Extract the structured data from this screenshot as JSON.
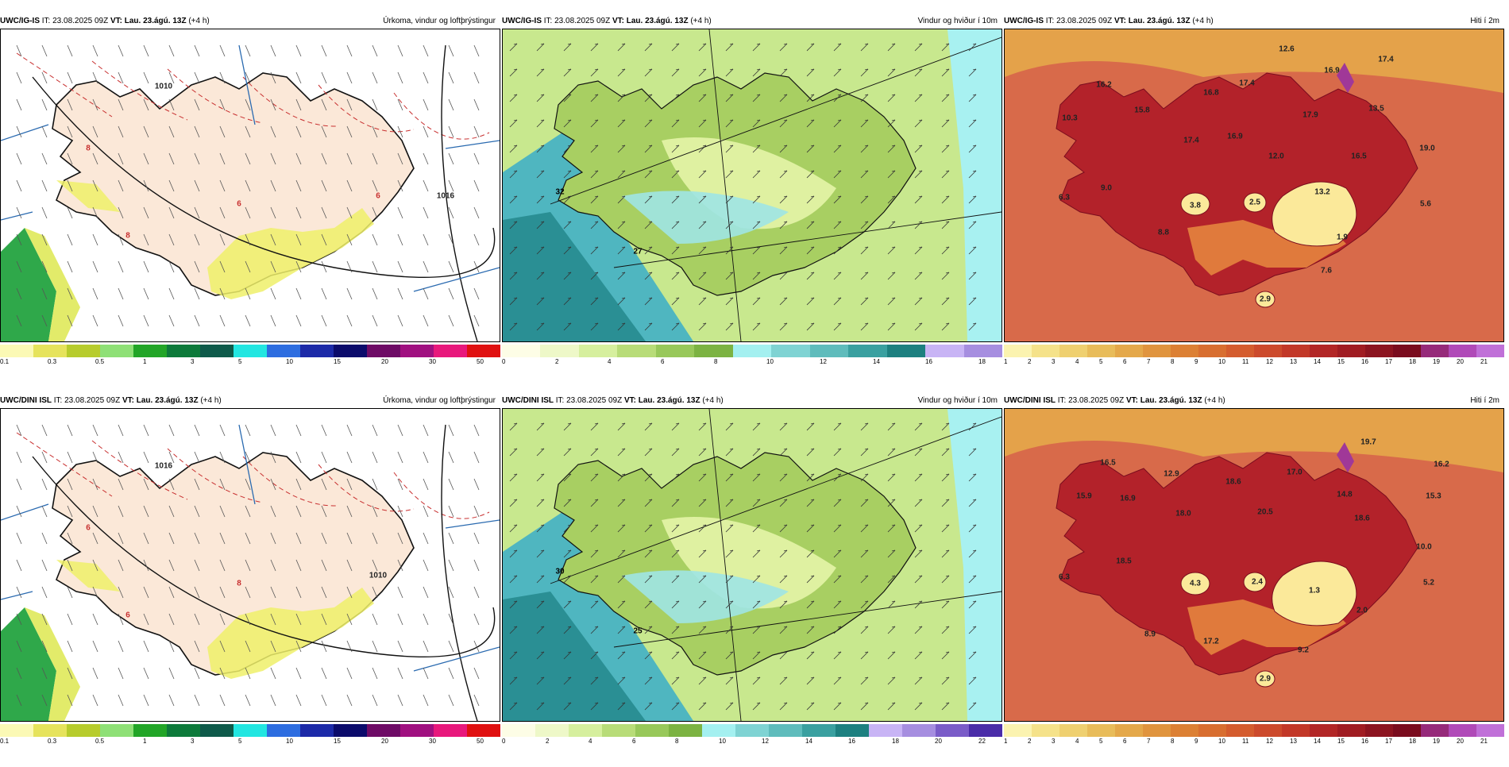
{
  "rows": [
    {
      "panels": [
        {
          "kind": "precip",
          "model": "UWC/IG-IS",
          "it": "IT: 23.08.2025 09Z",
          "vt": "VT: Lau. 23.ágú. 13Z",
          "lead": "(+4 h)",
          "title": "Úrkoma, vindur og loftþrýstingur",
          "colorbar": {
            "colors": [
              "#fbf9b5",
              "#e6e35c",
              "#b7cc2c",
              "#8ee076",
              "#22a527",
              "#0d7a3a",
              "#0e5a4a",
              "#22e6e1",
              "#2d6de0",
              "#1c2aa8",
              "#0b0b6b",
              "#6e0b66",
              "#a01080",
              "#e8187c",
              "#e01010"
            ],
            "labels": [
              "0.1",
              "0.3",
              "0.5",
              "1",
              "3",
              "5",
              "10",
              "15",
              "20",
              "30",
              "50"
            ]
          },
          "values": [
            {
              "text": "8",
              "c": "#c83030"
            },
            {
              "text": "6",
              "c": "#c83030"
            },
            {
              "text": "8",
              "c": "#c83030"
            },
            {
              "text": "6",
              "c": "#c83030"
            },
            {
              "text": "1010",
              "c": "#222"
            },
            {
              "text": "1016",
              "c": "#222"
            }
          ]
        },
        {
          "kind": "wind",
          "model": "UWC/IG-IS",
          "it": "IT: 23.08.2025 09Z",
          "vt": "VT: Lau. 23.ágú. 13Z",
          "lead": "(+4 h)",
          "title": "Vindur og hviður í 10m",
          "colorbar": {
            "colors": [
              "#fdfde6",
              "#eef8c8",
              "#d6ef9e",
              "#b8dc78",
              "#98c85a",
              "#7cb342",
              "#a4f0f0",
              "#7fd3d3",
              "#5fbcbc",
              "#3aa0a0",
              "#1d8080",
              "#c8b4f5",
              "#a68ee0"
            ],
            "labels": [
              "0",
              "2",
              "4",
              "6",
              "8",
              "10",
              "12",
              "14",
              "16",
              "18"
            ]
          },
          "values": [
            {
              "text": "32",
              "c": "#000"
            },
            {
              "text": "27",
              "c": "#000"
            }
          ]
        },
        {
          "kind": "temp",
          "model": "UWC/IG-IS",
          "it": "IT: 23.08.2025 09Z",
          "vt": "VT: Lau. 23.ágú. 13Z",
          "lead": "(+4 h)",
          "title": "Hiti í 2m",
          "colorbar": {
            "colors": [
              "#fbf3b0",
              "#f5e28a",
              "#efd070",
              "#e8bc5a",
              "#e4a84a",
              "#e0943e",
              "#dc8034",
              "#d86e30",
              "#d45c2e",
              "#cc4a2c",
              "#c23828",
              "#b22626",
              "#a01c22",
              "#8c1420",
              "#7a0c1e",
              "#962a7a",
              "#b04ab8",
              "#c070d8"
            ],
            "labels": [
              "1",
              "2",
              "3",
              "4",
              "5",
              "6",
              "7",
              "8",
              "9",
              "10",
              "11",
              "12",
              "13",
              "14",
              "15",
              "16",
              "17",
              "18",
              "19",
              "20",
              "21"
            ]
          },
          "values": [
            {
              "text": "12.6"
            },
            {
              "text": "17.4"
            },
            {
              "text": "16.9"
            },
            {
              "text": "16.2"
            },
            {
              "text": "16.8"
            },
            {
              "text": "17.4"
            },
            {
              "text": "10.3"
            },
            {
              "text": "15.8"
            },
            {
              "text": "13.5"
            },
            {
              "text": "17.9"
            },
            {
              "text": "16.9"
            },
            {
              "text": "17.4"
            },
            {
              "text": "12.0"
            },
            {
              "text": "16.5"
            },
            {
              "text": "19.0"
            },
            {
              "text": "6.3"
            },
            {
              "text": "9.0"
            },
            {
              "text": "13.2"
            },
            {
              "text": "3.8"
            },
            {
              "text": "2.5"
            },
            {
              "text": "5.6"
            },
            {
              "text": "8.8"
            },
            {
              "text": "1.9"
            },
            {
              "text": "7.6"
            },
            {
              "text": "2.9"
            }
          ]
        }
      ]
    },
    {
      "panels": [
        {
          "kind": "precip",
          "model": "UWC/DINI ISL",
          "it": "IT: 23.08.2025 09Z",
          "vt": "VT: Lau. 23.ágú. 13Z",
          "lead": "(+4 h)",
          "title": "Úrkoma, vindur og loftþrýstingur",
          "colorbar": {
            "colors": [
              "#fbf9b5",
              "#e6e35c",
              "#b7cc2c",
              "#8ee076",
              "#22a527",
              "#0d7a3a",
              "#0e5a4a",
              "#22e6e1",
              "#2d6de0",
              "#1c2aa8",
              "#0b0b6b",
              "#6e0b66",
              "#a01080",
              "#e8187c",
              "#e01010"
            ],
            "labels": [
              "0.1",
              "0.3",
              "0.5",
              "1",
              "3",
              "5",
              "10",
              "15",
              "20",
              "30",
              "50"
            ]
          },
          "values": [
            {
              "text": "6",
              "c": "#c83030"
            },
            {
              "text": "8",
              "c": "#c83030"
            },
            {
              "text": "6",
              "c": "#c83030"
            },
            {
              "text": "1010",
              "c": "#222"
            },
            {
              "text": "1016",
              "c": "#222"
            }
          ]
        },
        {
          "kind": "wind",
          "model": "UWC/DINI ISL",
          "it": "IT: 23.08.2025 09Z",
          "vt": "VT: Lau. 23.ágú. 13Z",
          "lead": "(+4 h)",
          "title": "Vindur og hviður í 10m",
          "colorbar": {
            "colors": [
              "#fdfde6",
              "#eef8c8",
              "#d6ef9e",
              "#b8dc78",
              "#98c85a",
              "#7cb342",
              "#a4f0f0",
              "#7fd3d3",
              "#5fbcbc",
              "#3aa0a0",
              "#1d8080",
              "#c8b4f5",
              "#a68ee0",
              "#7a5cc8",
              "#4a2ca8"
            ],
            "labels": [
              "0",
              "2",
              "4",
              "6",
              "8",
              "10",
              "12",
              "14",
              "16",
              "18",
              "20",
              "22"
            ]
          },
          "values": [
            {
              "text": "30",
              "c": "#000"
            },
            {
              "text": "25",
              "c": "#000"
            }
          ]
        },
        {
          "kind": "temp",
          "model": "UWC/DINI ISL",
          "it": "IT: 23.08.2025 09Z",
          "vt": "VT: Lau. 23.ágú. 13Z",
          "lead": "(+4 h)",
          "title": "Hiti í 2m",
          "colorbar": {
            "colors": [
              "#fbf3b0",
              "#f5e28a",
              "#efd070",
              "#e8bc5a",
              "#e4a84a",
              "#e0943e",
              "#dc8034",
              "#d86e30",
              "#d45c2e",
              "#cc4a2c",
              "#c23828",
              "#b22626",
              "#a01c22",
              "#8c1420",
              "#7a0c1e",
              "#962a7a",
              "#b04ab8",
              "#c070d8"
            ],
            "labels": [
              "1",
              "2",
              "3",
              "4",
              "5",
              "6",
              "7",
              "8",
              "9",
              "10",
              "11",
              "12",
              "13",
              "14",
              "15",
              "16",
              "17",
              "18",
              "19",
              "20",
              "21"
            ]
          },
          "values": [
            {
              "text": "19.7"
            },
            {
              "text": "16.5"
            },
            {
              "text": "12.9"
            },
            {
              "text": "18.6"
            },
            {
              "text": "17.0"
            },
            {
              "text": "16.2"
            },
            {
              "text": "15.9"
            },
            {
              "text": "16.9"
            },
            {
              "text": "14.8"
            },
            {
              "text": "15.3"
            },
            {
              "text": "18.0"
            },
            {
              "text": "20.5"
            },
            {
              "text": "18.6"
            },
            {
              "text": "10.0"
            },
            {
              "text": "6.3"
            },
            {
              "text": "18.5"
            },
            {
              "text": "4.3"
            },
            {
              "text": "2.4"
            },
            {
              "text": "1.3"
            },
            {
              "text": "5.2"
            },
            {
              "text": "2.0"
            },
            {
              "text": "8.9"
            },
            {
              "text": "17.2"
            },
            {
              "text": "9.2"
            },
            {
              "text": "2.9"
            }
          ]
        }
      ]
    }
  ]
}
